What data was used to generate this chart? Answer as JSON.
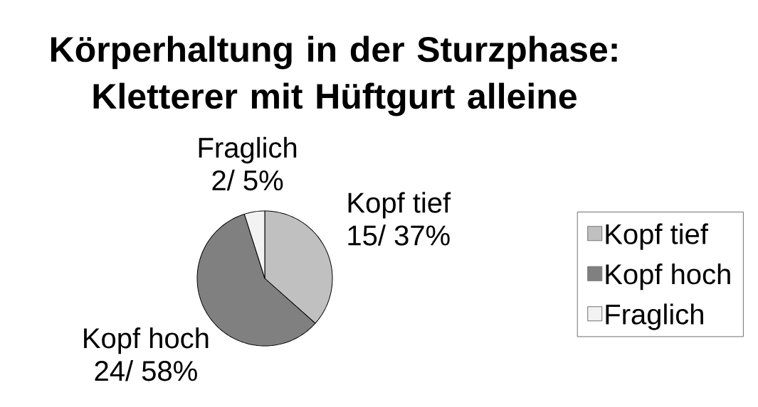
{
  "chart_data": {
    "type": "pie",
    "title": "Körperhaltung in der Sturzphase: Kletterer mit Hüftgurt alleine",
    "categories": [
      "Kopf tief",
      "Kopf hoch",
      "Fraglich"
    ],
    "values": [
      15,
      24,
      2
    ],
    "colors": [
      "#c0c0c0",
      "#808080",
      "#f2f2f2"
    ],
    "value_labels": [
      "15/ 37%",
      "24/ 58%",
      "2/ 5%"
    ],
    "legend": "right"
  }
}
